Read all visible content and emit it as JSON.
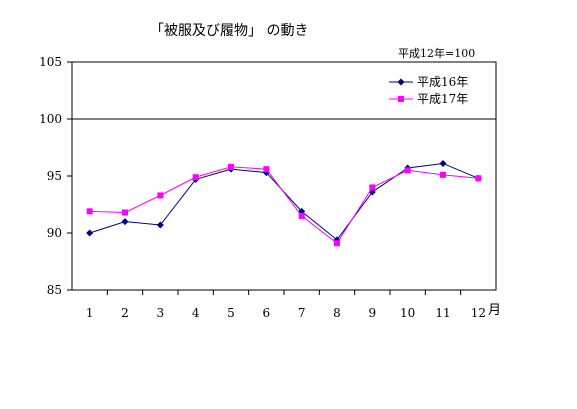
{
  "chart_data": {
    "type": "line",
    "title": "「被服及び履物」 の動き",
    "note": "平成12年=100",
    "x_unit": "月",
    "categories": [
      "1",
      "2",
      "3",
      "4",
      "5",
      "6",
      "7",
      "8",
      "9",
      "10",
      "11",
      "12"
    ],
    "ylim": [
      85,
      105
    ],
    "yticks": [
      "85",
      "90",
      "95",
      "100",
      "105"
    ],
    "reference_line": 100,
    "legend_position": "top-right",
    "grid": false,
    "series": [
      {
        "name": "平成16年",
        "color": "#000080",
        "marker": "diamond",
        "values": [
          90.0,
          91.0,
          90.7,
          94.7,
          95.6,
          95.3,
          91.9,
          89.4,
          93.6,
          95.7,
          96.1,
          94.8
        ]
      },
      {
        "name": "平成17年",
        "color": "#ff00ff",
        "marker": "square",
        "values": [
          91.9,
          91.8,
          93.3,
          94.9,
          95.8,
          95.6,
          91.5,
          89.1,
          94.0,
          95.5,
          95.1,
          94.8
        ]
      }
    ]
  }
}
